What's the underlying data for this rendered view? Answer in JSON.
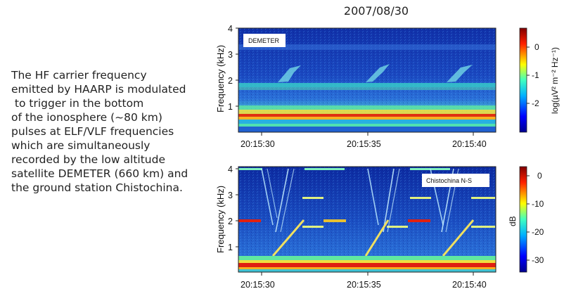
{
  "caption": {
    "lines": [
      "The HF carrier frequency",
      "emitted by HAARP is modulated",
      " to trigger in the bottom",
      "of the ionosphere (~80 km)",
      "pulses at ELF/VLF frequencies",
      "which are simultaneously",
      "recorded by the low altitude",
      "satellite DEMETER (660 km) and",
      "the ground station Chistochina."
    ]
  },
  "figure": {
    "date": "2007/08/30",
    "panels": [
      {
        "tag": "DEMETER",
        "ylabel": "Frequency (kHz)",
        "yticks": [
          "1",
          "2",
          "3",
          "4"
        ],
        "xticks": [
          "20:15:30",
          "20:15:35",
          "20:15:40"
        ],
        "colorbar": {
          "label": "log(µV² m⁻² Hz⁻¹)",
          "ticks": [
            "0",
            "-1",
            "-2"
          ]
        }
      },
      {
        "tag": "Chistochina N-S",
        "ylabel": "Frequency (kHz)",
        "yticks": [
          "1",
          "2",
          "3",
          "4"
        ],
        "xticks": [
          "20:15:30",
          "20:15:35",
          "20:15:40"
        ],
        "colorbar": {
          "label": "dB",
          "ticks": [
            "0",
            "-10",
            "-20",
            "-30"
          ]
        }
      }
    ]
  }
}
